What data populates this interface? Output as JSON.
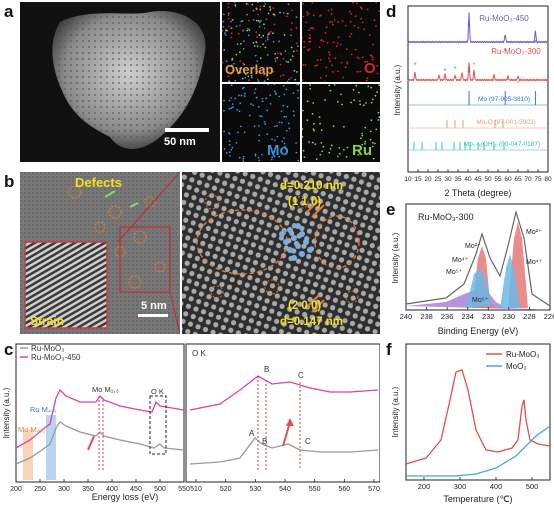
{
  "panels": {
    "a": {
      "label": "a",
      "scalebar": "50 nm",
      "maps": [
        {
          "label": "Overlap",
          "color": "#e8a040"
        },
        {
          "label": "O",
          "color": "#e02020"
        },
        {
          "label": "Mo",
          "color": "#3a8fe0"
        },
        {
          "label": "Ru",
          "color": "#8bd04a"
        }
      ]
    },
    "b": {
      "label": "b",
      "defects": "Defects",
      "strain": "Strain",
      "scalebar": "5 nm",
      "d1": "d=0.210 nm",
      "h1": "(1 1 0)",
      "h2": "(2 0 0)",
      "d2": "d=0.147 nm"
    },
    "c": {
      "label": "c",
      "legend": [
        "Ru-MoO₃",
        "Ru-MoO₃-450"
      ],
      "xlabel": "Energy loss (eV)",
      "ylabel": "Intensity (a.u.)",
      "xticks_left": [
        "200",
        "250",
        "300",
        "350",
        "400",
        "450",
        "500",
        "550"
      ],
      "xticks_right": [
        "510",
        "520",
        "530",
        "540",
        "550",
        "560",
        "570"
      ],
      "annotations": {
        "ru": "Ru M₄,₅",
        "mo_m45": "Mo M₄,₅",
        "mo_m23": "Mo M₂,₃",
        "ok": "O K",
        "ok_right": "O K",
        "A": "A",
        "B": "B",
        "C": "C",
        "B2": "B",
        "C2": "C"
      }
    },
    "d": {
      "label": "d",
      "xlabel": "2 Theta (degree)",
      "ylabel": "Intensity (a.u.)",
      "xticks": [
        "10",
        "15",
        "20",
        "25",
        "30",
        "35",
        "40",
        "45",
        "50",
        "55",
        "60",
        "65",
        "70",
        "75",
        "80"
      ],
      "series": [
        {
          "name": "Ru-MoO₃-450",
          "color": "#6a60c0"
        },
        {
          "name": "Ru-MoO₃-300",
          "color": "#e05050"
        },
        {
          "name": "Mo (97-005-3810)",
          "color": "#2a7ad0"
        },
        {
          "name": "Mo₂O (97-001-5903)",
          "color": "#e0a070"
        },
        {
          "name": "Mo₁₋ₓ(OH)₂ (00-047-0187)",
          "color": "#30c0c0"
        }
      ]
    },
    "e": {
      "label": "e",
      "title": "Ru-MoO₃-300",
      "xlabel": "Binding Energy (eV)",
      "ylabel": "Intensity (a.u.)",
      "xticks": [
        "240",
        "238",
        "236",
        "234",
        "232",
        "230",
        "228",
        "226"
      ],
      "peaks": [
        "Mo²⁺",
        "Mo⁴⁺",
        "Mo⁵⁺",
        "Mo²⁺",
        "Mo⁴⁺",
        "Mo⁵⁺"
      ]
    },
    "f": {
      "label": "f",
      "legend": [
        "Ru-MoO₃",
        "MoO₃"
      ],
      "xlabel": "Temperature (℃)",
      "ylabel": "Intensity (a.u.)",
      "xticks": [
        "200",
        "300",
        "400",
        "500"
      ]
    }
  },
  "chart_data": [
    {
      "type": "line",
      "title": "",
      "xlabel": "2 Theta (degree)",
      "ylabel": "Intensity (a.u.)",
      "xlim": [
        10,
        80
      ],
      "series": [
        {
          "name": "Ru-MoO₃-450",
          "peaks": [
            40.5,
            58.6,
            73.7
          ]
        },
        {
          "name": "Ru-MoO₃-300",
          "peaks": [
            13.5,
            25.5,
            28.5,
            33.5,
            37,
            40.5,
            43,
            53,
            60,
            65
          ]
        },
        {
          "name": "Mo (97-005-3810)",
          "ticks": [
            40.5,
            58.6,
            73.7
          ]
        },
        {
          "name": "Mo₂O (97-001-5903)",
          "ticks": [
            29.5,
            33.5,
            37.5,
            53.5,
            57.5
          ]
        },
        {
          "name": "Mo₁₋ₓ(OH)₂ (00-047-0187)",
          "ticks": [
            13,
            17,
            24,
            27,
            33,
            36,
            38.5,
            41,
            45,
            48,
            53,
            58
          ]
        }
      ]
    },
    {
      "type": "area",
      "title": "Ru-MoO₃-300",
      "xlabel": "Binding Energy (eV)",
      "ylabel": "Intensity (a.u.)",
      "xlim": [
        240,
        225
      ],
      "series": [
        {
          "name": "Mo²⁺",
          "centers": [
            231.8,
            228.6
          ]
        },
        {
          "name": "Mo⁴⁺",
          "centers": [
            232.3,
            229.3
          ]
        },
        {
          "name": "Mo⁵⁺",
          "centers": [
            235.0,
            231.5
          ]
        }
      ]
    },
    {
      "type": "line",
      "title": "",
      "xlabel": "Temperature (℃)",
      "ylabel": "Intensity (a.u.)",
      "xlim": [
        150,
        550
      ],
      "series": [
        {
          "name": "Ru-MoO₃",
          "peaks": [
            310,
            458
          ]
        },
        {
          "name": "MoO₃",
          "trend": "rising from ~350"
        }
      ]
    }
  ]
}
